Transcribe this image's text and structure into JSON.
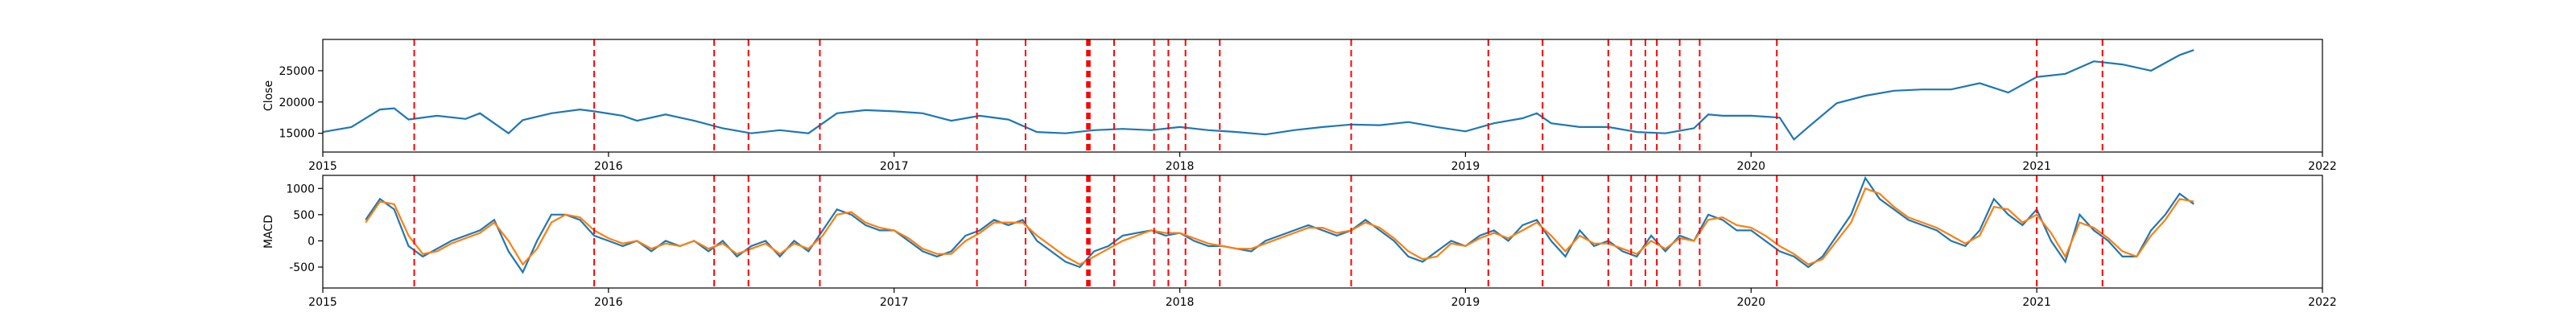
{
  "chart_data": [
    {
      "type": "line",
      "title": "",
      "xlabel": "",
      "ylabel": "Close",
      "xlim": [
        2015,
        2022
      ],
      "ylim": [
        12000,
        30000
      ],
      "xticks": [
        "2015",
        "2016",
        "2017",
        "2018",
        "2019",
        "2020",
        "2021",
        "2022"
      ],
      "yticks": [
        15000,
        20000,
        25000
      ],
      "grid": false,
      "legend": "none",
      "series": [
        {
          "color": "#1f77b4",
          "x": [
            2015.0,
            2015.1,
            2015.2,
            2015.25,
            2015.3,
            2015.4,
            2015.5,
            2015.55,
            2015.65,
            2015.7,
            2015.8,
            2015.9,
            2015.95,
            2016.05,
            2016.1,
            2016.2,
            2016.3,
            2016.4,
            2016.5,
            2016.6,
            2016.7,
            2016.8,
            2016.9,
            2017.0,
            2017.1,
            2017.2,
            2017.3,
            2017.4,
            2017.5,
            2017.6,
            2017.7,
            2017.8,
            2017.9,
            2018.0,
            2018.1,
            2018.2,
            2018.3,
            2018.4,
            2018.5,
            2018.6,
            2018.7,
            2018.8,
            2018.9,
            2019.0,
            2019.1,
            2019.2,
            2019.25,
            2019.3,
            2019.4,
            2019.5,
            2019.6,
            2019.7,
            2019.8,
            2019.85,
            2019.9,
            2020.0,
            2020.1,
            2020.15,
            2020.2,
            2020.3,
            2020.4,
            2020.5,
            2020.6,
            2020.7,
            2020.8,
            2020.9,
            2021.0,
            2021.1,
            2021.2,
            2021.3,
            2021.4,
            2021.5,
            2021.55
          ],
          "y": [
            15200,
            16000,
            18800,
            19000,
            17200,
            17800,
            17300,
            18200,
            15000,
            17100,
            18200,
            18800,
            18500,
            17800,
            17000,
            18000,
            17000,
            15800,
            15000,
            15500,
            15000,
            18200,
            18700,
            18500,
            18200,
            17000,
            17800,
            17200,
            15200,
            15000,
            15500,
            15700,
            15500,
            16000,
            15500,
            15200,
            14800,
            15500,
            16000,
            16400,
            16300,
            16800,
            16000,
            15300,
            16600,
            17400,
            18200,
            16600,
            16000,
            16000,
            15200,
            15000,
            15800,
            18000,
            17800,
            17800,
            17500,
            14000,
            16000,
            19800,
            21000,
            21800,
            22000,
            22000,
            23000,
            21500,
            24000,
            24500,
            26500,
            26000,
            25000,
            27500,
            28300
          ]
        }
      ],
      "vlines": [
        2015.32,
        2015.95,
        2016.37,
        2016.49,
        2016.74,
        2017.29,
        2017.46,
        2017.675,
        2017.68,
        2017.685,
        2017.77,
        2017.91,
        2017.96,
        2018.02,
        2018.14,
        2018.6,
        2019.08,
        2019.27,
        2019.5,
        2019.58,
        2019.63,
        2019.67,
        2019.75,
        2019.82,
        2020.09,
        2021.0,
        2021.23
      ]
    },
    {
      "type": "line",
      "title": "",
      "xlabel": "",
      "ylabel": "MACD",
      "xlim": [
        2015,
        2022
      ],
      "ylim": [
        -900,
        1250
      ],
      "xticks": [
        "2015",
        "2016",
        "2017",
        "2018",
        "2019",
        "2020",
        "2021",
        "2022"
      ],
      "yticks": [
        -500,
        0,
        500,
        1000
      ],
      "grid": false,
      "legend": "none",
      "series": [
        {
          "color": "#1f77b4",
          "x": [
            2015.15,
            2015.2,
            2015.25,
            2015.3,
            2015.35,
            2015.4,
            2015.45,
            2015.5,
            2015.55,
            2015.6,
            2015.65,
            2015.7,
            2015.75,
            2015.8,
            2015.85,
            2015.9,
            2015.95,
            2016.0,
            2016.05,
            2016.1,
            2016.15,
            2016.2,
            2016.25,
            2016.3,
            2016.35,
            2016.4,
            2016.45,
            2016.5,
            2016.55,
            2016.6,
            2016.65,
            2016.7,
            2016.75,
            2016.8,
            2016.85,
            2016.9,
            2016.95,
            2017.0,
            2017.05,
            2017.1,
            2017.15,
            2017.2,
            2017.25,
            2017.3,
            2017.35,
            2017.4,
            2017.45,
            2017.5,
            2017.55,
            2017.6,
            2017.65,
            2017.7,
            2017.75,
            2017.8,
            2017.85,
            2017.9,
            2017.95,
            2018.0,
            2018.05,
            2018.1,
            2018.15,
            2018.2,
            2018.25,
            2018.3,
            2018.35,
            2018.4,
            2018.45,
            2018.5,
            2018.55,
            2018.6,
            2018.65,
            2018.7,
            2018.75,
            2018.8,
            2018.85,
            2018.9,
            2018.95,
            2019.0,
            2019.05,
            2019.1,
            2019.15,
            2019.2,
            2019.25,
            2019.3,
            2019.35,
            2019.4,
            2019.45,
            2019.5,
            2019.55,
            2019.6,
            2019.65,
            2019.7,
            2019.75,
            2019.8,
            2019.85,
            2019.9,
            2019.95,
            2020.0,
            2020.05,
            2020.1,
            2020.15,
            2020.2,
            2020.25,
            2020.3,
            2020.35,
            2020.4,
            2020.45,
            2020.5,
            2020.55,
            2020.6,
            2020.65,
            2020.7,
            2020.75,
            2020.8,
            2020.85,
            2020.9,
            2020.95,
            2021.0,
            2021.05,
            2021.1,
            2021.15,
            2021.2,
            2021.25,
            2021.3,
            2021.35,
            2021.4,
            2021.45,
            2021.5,
            2021.55
          ],
          "y": [
            400,
            800,
            600,
            -100,
            -300,
            -150,
            0,
            100,
            200,
            400,
            -200,
            -600,
            0,
            500,
            500,
            400,
            100,
            0,
            -100,
            0,
            -200,
            0,
            -100,
            0,
            -200,
            0,
            -300,
            -100,
            0,
            -300,
            0,
            -200,
            200,
            600,
            500,
            300,
            200,
            200,
            0,
            -200,
            -300,
            -200,
            100,
            200,
            400,
            300,
            400,
            0,
            -200,
            -400,
            -500,
            -200,
            -100,
            100,
            150,
            200,
            100,
            150,
            0,
            -100,
            -100,
            -150,
            -200,
            0,
            100,
            200,
            300,
            200,
            100,
            200,
            400,
            200,
            0,
            -300,
            -400,
            -200,
            0,
            -100,
            100,
            200,
            0,
            300,
            400,
            0,
            -300,
            200,
            -100,
            0,
            -200,
            -300,
            100,
            -200,
            100,
            0,
            500,
            400,
            200,
            200,
            0,
            -200,
            -300,
            -500,
            -300,
            100,
            500,
            1200,
            800,
            600,
            400,
            300,
            200,
            0,
            -100,
            200,
            800,
            500,
            300,
            600,
            0,
            -400,
            500,
            200,
            0,
            -300,
            -300,
            200,
            500,
            900,
            700
          ]
        },
        {
          "color": "#ff7f0e",
          "x": [
            2015.15,
            2015.2,
            2015.25,
            2015.3,
            2015.35,
            2015.4,
            2015.45,
            2015.5,
            2015.55,
            2015.6,
            2015.65,
            2015.7,
            2015.75,
            2015.8,
            2015.85,
            2015.9,
            2015.95,
            2016.0,
            2016.05,
            2016.1,
            2016.15,
            2016.2,
            2016.25,
            2016.3,
            2016.35,
            2016.4,
            2016.45,
            2016.5,
            2016.55,
            2016.6,
            2016.65,
            2016.7,
            2016.75,
            2016.8,
            2016.85,
            2016.9,
            2016.95,
            2017.0,
            2017.05,
            2017.1,
            2017.15,
            2017.2,
            2017.25,
            2017.3,
            2017.35,
            2017.4,
            2017.45,
            2017.5,
            2017.55,
            2017.6,
            2017.65,
            2017.7,
            2017.75,
            2017.8,
            2017.85,
            2017.9,
            2017.95,
            2018.0,
            2018.05,
            2018.1,
            2018.15,
            2018.2,
            2018.25,
            2018.3,
            2018.35,
            2018.4,
            2018.45,
            2018.5,
            2018.55,
            2018.6,
            2018.65,
            2018.7,
            2018.75,
            2018.8,
            2018.85,
            2018.9,
            2018.95,
            2019.0,
            2019.05,
            2019.1,
            2019.15,
            2019.2,
            2019.25,
            2019.3,
            2019.35,
            2019.4,
            2019.45,
            2019.5,
            2019.55,
            2019.6,
            2019.65,
            2019.7,
            2019.75,
            2019.8,
            2019.85,
            2019.9,
            2019.95,
            2020.0,
            2020.05,
            2020.1,
            2020.15,
            2020.2,
            2020.25,
            2020.3,
            2020.35,
            2020.4,
            2020.45,
            2020.5,
            2020.55,
            2020.6,
            2020.65,
            2020.7,
            2020.75,
            2020.8,
            2020.85,
            2020.9,
            2020.95,
            2021.0,
            2021.05,
            2021.1,
            2021.15,
            2021.2,
            2021.25,
            2021.3,
            2021.35,
            2021.4,
            2021.45,
            2021.5,
            2021.55
          ],
          "y": [
            350,
            750,
            700,
            100,
            -250,
            -200,
            -50,
            50,
            150,
            350,
            0,
            -450,
            -150,
            350,
            500,
            450,
            200,
            50,
            -50,
            0,
            -150,
            -50,
            -100,
            0,
            -150,
            -50,
            -250,
            -150,
            -50,
            -250,
            -50,
            -150,
            100,
            500,
            550,
            350,
            250,
            200,
            50,
            -150,
            -250,
            -250,
            0,
            150,
            350,
            350,
            350,
            100,
            -100,
            -300,
            -450,
            -300,
            -150,
            0,
            100,
            200,
            150,
            150,
            50,
            -50,
            -100,
            -150,
            -150,
            -50,
            50,
            150,
            250,
            250,
            150,
            200,
            350,
            250,
            50,
            -200,
            -350,
            -300,
            -50,
            -100,
            50,
            150,
            50,
            200,
            350,
            100,
            -200,
            100,
            -50,
            -50,
            -150,
            -250,
            0,
            -150,
            50,
            0,
            400,
            450,
            300,
            250,
            100,
            -100,
            -250,
            -450,
            -350,
            0,
            350,
            1000,
            900,
            650,
            450,
            350,
            250,
            100,
            -50,
            100,
            650,
            600,
            350,
            500,
            150,
            -300,
            350,
            250,
            50,
            -200,
            -300,
            100,
            400,
            800,
            750
          ]
        }
      ],
      "vlines": [
        2015.32,
        2015.95,
        2016.37,
        2016.49,
        2016.74,
        2017.29,
        2017.46,
        2017.675,
        2017.68,
        2017.685,
        2017.77,
        2017.91,
        2017.96,
        2018.02,
        2018.14,
        2018.6,
        2019.08,
        2019.27,
        2019.5,
        2019.58,
        2019.63,
        2019.67,
        2019.75,
        2019.82,
        2020.09,
        2021.0,
        2021.23
      ]
    }
  ]
}
